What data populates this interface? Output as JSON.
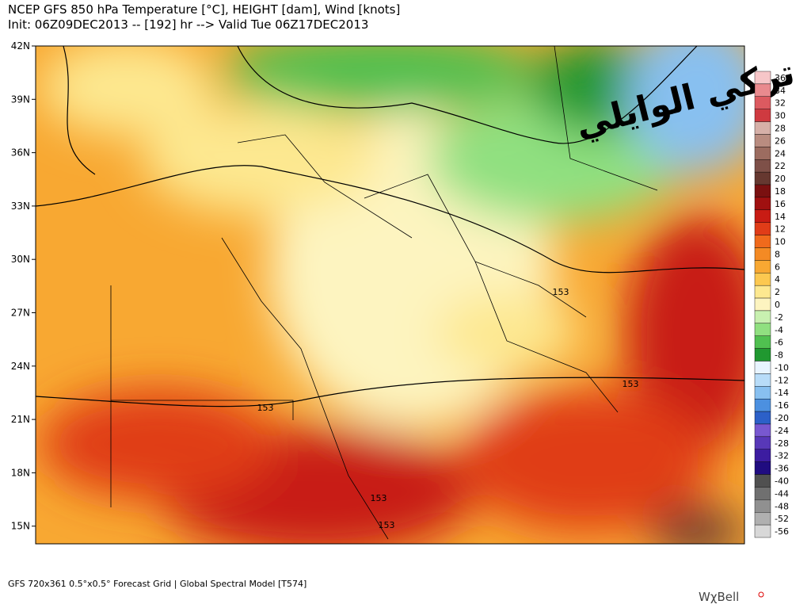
{
  "header": {
    "title": "NCEP GFS 850 hPa Temperature [°C], HEIGHT [dam], Wind [knots]",
    "subtitle": "Init: 06Z09DEC2013 -- [192] hr --> Valid Tue 06Z17DEC2013"
  },
  "watermark": "تركي الوايلي",
  "latitude_labels": [
    "42N",
    "39N",
    "36N",
    "33N",
    "30N",
    "27N",
    "24N",
    "21N",
    "18N",
    "15N"
  ],
  "contour_labels": [
    "153",
    "153",
    "153",
    "153",
    "153"
  ],
  "colorbar": {
    "values": [
      36,
      34,
      32,
      30,
      28,
      26,
      24,
      22,
      20,
      18,
      16,
      14,
      12,
      10,
      8,
      6,
      4,
      2,
      0,
      -2,
      -4,
      -6,
      -8,
      -10,
      -12,
      -14,
      -16,
      -20,
      -24,
      -28,
      -32,
      -36,
      -40,
      -44,
      -48,
      -52,
      -56
    ],
    "colors": [
      "#f6c6c8",
      "#e98a8e",
      "#dc5a60",
      "#cf3a40",
      "#d6b0a8",
      "#b98c80",
      "#9c6c60",
      "#7e5048",
      "#663830",
      "#7a1010",
      "#a01010",
      "#c81c14",
      "#e03c18",
      "#f06a1c",
      "#f48a24",
      "#f8a832",
      "#fcc850",
      "#fde890",
      "#fdf4c0",
      "#c8f0b0",
      "#90e080",
      "#50c050",
      "#209830",
      "#e8f4ff",
      "#b8dcf8",
      "#88c0f0",
      "#4c90e0",
      "#2c60c8",
      "#7858d0",
      "#5838b8",
      "#3c1ca0",
      "#200c80",
      "#505050",
      "#707070",
      "#909090",
      "#b0b0b0",
      "#d8d8d8"
    ]
  },
  "footer": {
    "text": "GFS 720x361 0.5°x0.5° Forecast Grid | Global Spectral Model [T574]",
    "brand": "WχBell"
  }
}
